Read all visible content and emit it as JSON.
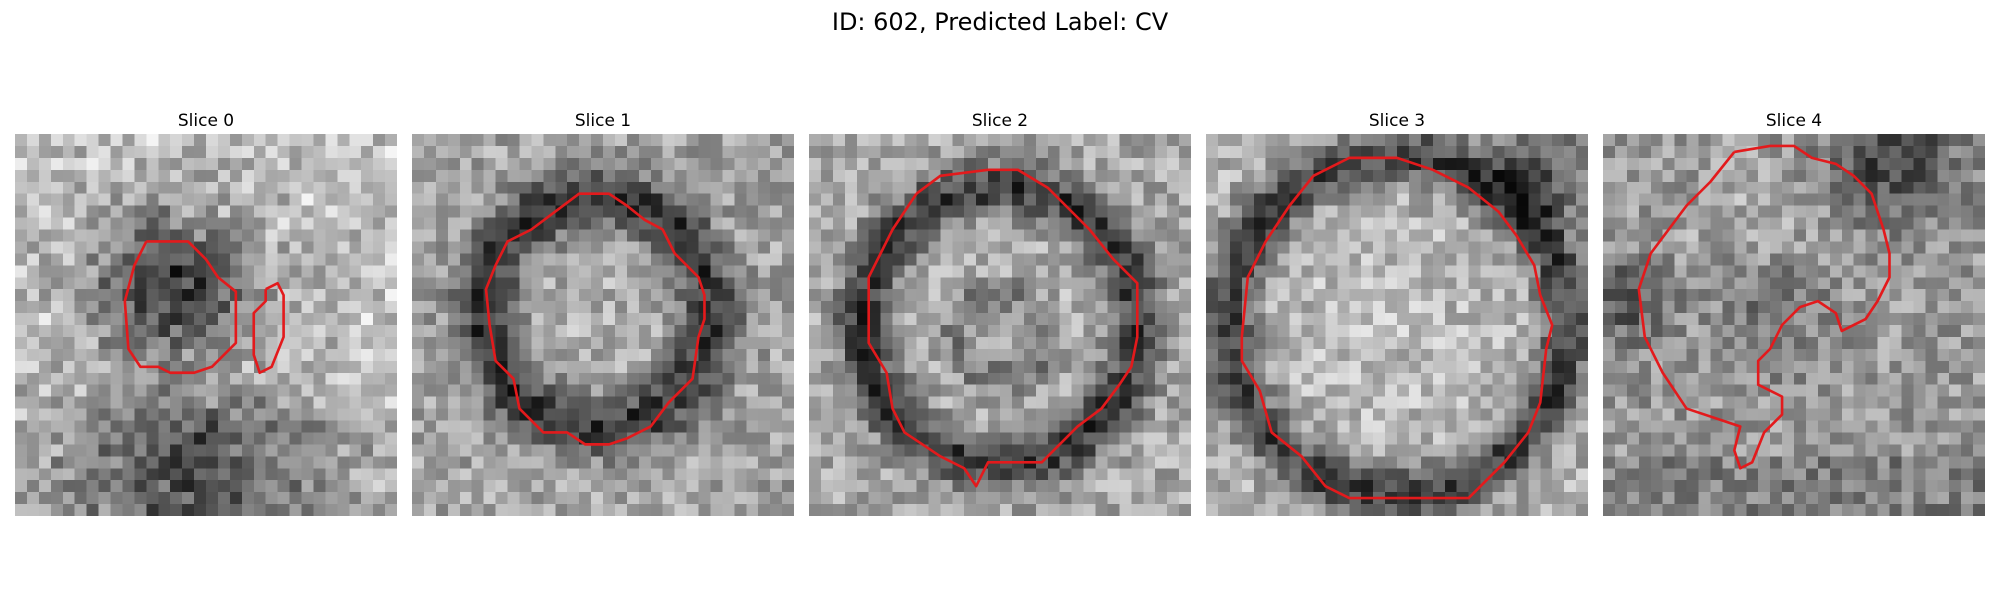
{
  "figure": {
    "title": "ID: 602, Predicted Label: CV",
    "contour_color": "#e31a1c",
    "colormap": "gray"
  },
  "panels": [
    {
      "title": "Slice 0"
    },
    {
      "title": "Slice 1"
    },
    {
      "title": "Slice 2"
    },
    {
      "title": "Slice 3"
    },
    {
      "title": "Slice 4"
    }
  ]
}
